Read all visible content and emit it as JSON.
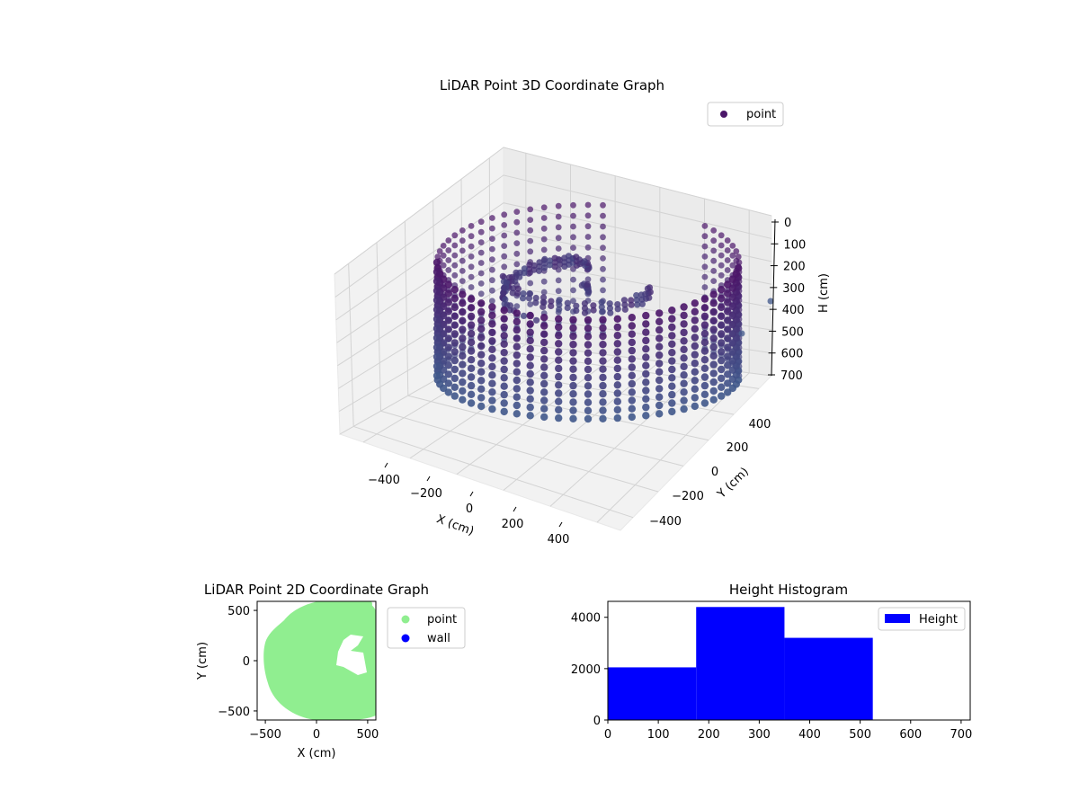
{
  "chart_data": [
    {
      "type": "scatter3d",
      "title": "LiDAR Point 3D Coordinate Graph",
      "xlabel": "X (cm)",
      "ylabel": "Y (cm)",
      "zlabel": "H (cm)",
      "xticks": [
        "−400",
        "−200",
        "0",
        "200",
        "400"
      ],
      "yticks": [
        "−400",
        "−200",
        "0",
        "200",
        "400"
      ],
      "zticks": [
        "0",
        "100",
        "200",
        "300",
        "400",
        "500",
        "600",
        "700"
      ],
      "zlim": [
        0,
        700
      ],
      "z_inverted": true,
      "legend": {
        "entries": [
          "point"
        ],
        "position": "upper-right"
      },
      "colors": {
        "top": "#4b1669",
        "bottom": "#3f5f8f"
      },
      "grid": true
    },
    {
      "type": "scatter",
      "title": "LiDAR Point 2D Coordinate Graph",
      "xlabel": "X (cm)",
      "ylabel": "Y (cm)",
      "xlim": [
        -580,
        580
      ],
      "ylim": [
        -590,
        590
      ],
      "xticks": [
        -500,
        0,
        500
      ],
      "yticks": [
        -500,
        0,
        500
      ],
      "legend": {
        "entries": [
          "point",
          "wall"
        ],
        "position": "outside-right"
      },
      "colors": {
        "point": "#90ee90",
        "wall": "#0000ff"
      }
    },
    {
      "type": "histogram",
      "title": "Height Histogram",
      "bins": [
        [
          0,
          175,
          2050
        ],
        [
          175,
          350,
          4400
        ],
        [
          350,
          525,
          3200
        ],
        [
          525,
          700,
          0
        ]
      ],
      "xlim": [
        0,
        718
      ],
      "ylim": [
        0,
        4620
      ],
      "xticks": [
        0,
        100,
        200,
        300,
        400,
        500,
        600,
        700
      ],
      "yticks": [
        0,
        2000,
        4000
      ],
      "legend": {
        "entries": [
          "Height"
        ],
        "position": "upper-right"
      },
      "colors": {
        "bar": "#0000ff"
      }
    }
  ]
}
